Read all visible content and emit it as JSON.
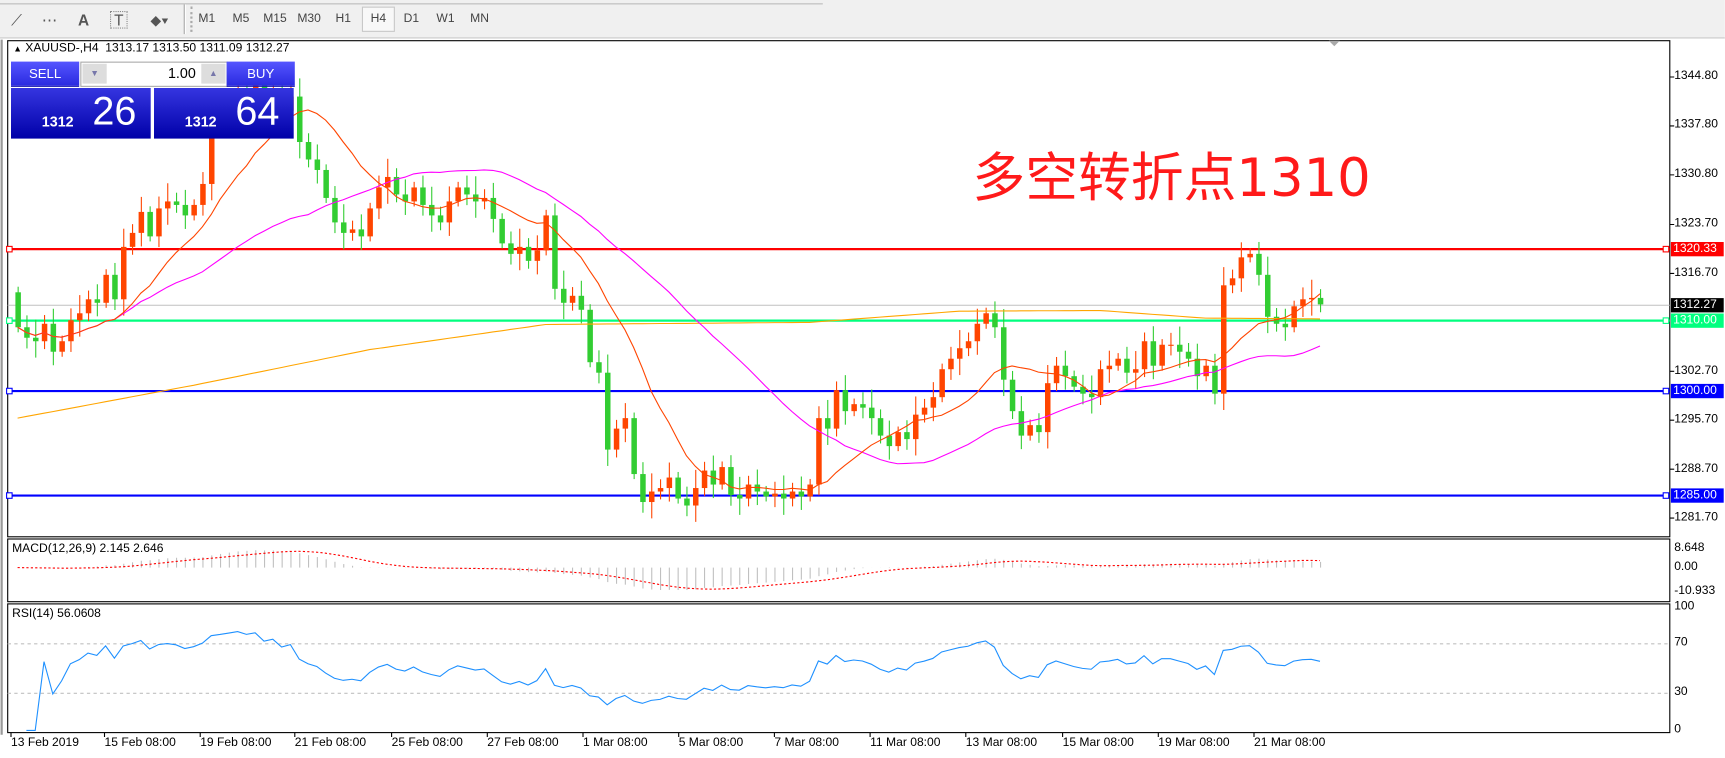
{
  "toolbar": {
    "icons": [
      "elliott-wave-icon",
      "fibonacci-fan-icon",
      "text-icon",
      "text-label-icon",
      "arrows-dropdown-icon"
    ],
    "icon_glyphs": [
      "⟋",
      "⋯",
      "A",
      "T",
      "⬥▾"
    ],
    "timeframes": [
      "M1",
      "M5",
      "M15",
      "M30",
      "H1",
      "H4",
      "D1",
      "W1",
      "MN"
    ],
    "active_timeframe": "H4"
  },
  "header": {
    "symbol": "XAUUSD-,H4",
    "ohlc": "1313.17 1313.50 1311.09 1312.27"
  },
  "trade_panel": {
    "sell_label": "SELL",
    "buy_label": "BUY",
    "lot": "1.00",
    "sell_big": "1312",
    "sell_small": "26",
    "buy_big": "1312",
    "buy_small": "64"
  },
  "annotation": "多空转折点1310",
  "chart_data": {
    "type": "candlestick",
    "symbol": "XAUUSD-",
    "timeframe": "H4",
    "colors": {
      "bull": "#ff4500",
      "bear": "#32cd32",
      "ma_fast": "#ff4500",
      "ma_mid": "#ff00ff",
      "ma_long": "#ffa500"
    },
    "ylim": [
      1278.5,
      1347.5
    ],
    "price_ticks": [
      "1344.80",
      "1337.80",
      "1330.80",
      "1323.70",
      "1316.70",
      "1302.70",
      "1295.70",
      "1288.70",
      "1281.70"
    ],
    "closes": [
      1309.0,
      1307.5,
      1307.0,
      1309.5,
      1305.5,
      1307.0,
      1310.0,
      1311.0,
      1313.0,
      1312.5,
      1316.5,
      1313.0,
      1320.5,
      1322.5,
      1325.5,
      1322.0,
      1326.0,
      1327.0,
      1326.5,
      1325.0,
      1326.5,
      1329.5,
      1337.5,
      1339,
      1341,
      1343,
      1342,
      1344,
      1341,
      1343,
      1340,
      1342,
      1335.5,
      1333.0,
      1331.5,
      1327.5,
      1324,
      1322.5,
      1323,
      1322,
      1326,
      1329,
      1330.5,
      1328,
      1327,
      1329,
      1326.5,
      1325,
      1324,
      1327,
      1329,
      1328,
      1327,
      1327.5,
      1324.5,
      1321,
      1319.5,
      1320.5,
      1318.5,
      1320,
      1325,
      1314.5,
      1312.5,
      1313.5,
      1311.5,
      1304,
      1302.5,
      1291.5,
      1294.5,
      1296,
      1288,
      1284,
      1285.5,
      1286,
      1287.5,
      1284.5,
      1283.5,
      1286,
      1288.5,
      1286.5,
      1289,
      1285,
      1284.5,
      1286.5,
      1285.5,
      1284.8,
      1285.2,
      1284.5,
      1285.5,
      1284.8,
      1286.5,
      1296,
      1294.5,
      1300,
      1297,
      1298,
      1297.5,
      1296,
      1293.5,
      1292,
      1294,
      1293,
      1296.5,
      1297.5,
      1299,
      1303,
      1304.5,
      1306,
      1307,
      1309.5,
      1311,
      1309,
      1301.5,
      1297,
      1293.5,
      1295,
      1294,
      1301,
      1303.5,
      1302,
      1300.5,
      1299.5,
      1299,
      1303,
      1303.5,
      1304.5,
      1302.5,
      1303,
      1307,
      1303.5,
      1306.5,
      1306.5,
      1305.5,
      1304.5,
      1302,
      1303.5,
      1299.5,
      1315,
      1316,
      1319,
      1319.5,
      1316.5,
      1310.5,
      1309.5,
      1309,
      1312,
      1313,
      1313.2,
      1312.27
    ],
    "ma_long_points": [
      [
        0,
        1296.0
      ],
      [
        20,
        1300.7
      ],
      [
        40,
        1305.8
      ],
      [
        60,
        1309.4
      ],
      [
        90,
        1309.7
      ],
      [
        107,
        1311.3
      ],
      [
        123,
        1311.4
      ],
      [
        135,
        1310.3
      ],
      [
        148,
        1310.2
      ]
    ],
    "hlines": [
      {
        "value": "1320.33",
        "color": "#ff0000"
      },
      {
        "value": "1312.27",
        "color": "#000000",
        "line": "#c0c0c0"
      },
      {
        "value": "1310.00",
        "color": "#00ff7f"
      },
      {
        "value": "1300.00",
        "color": "#0000ff"
      },
      {
        "value": "1285.00",
        "color": "#0000ff"
      }
    ],
    "x_labels": [
      "13 Feb 2019",
      "15 Feb 08:00",
      "19 Feb 08:00",
      "21 Feb 08:00",
      "25 Feb 08:00",
      "27 Feb 08:00",
      "1 Mar 08:00",
      "5 Mar 08:00",
      "7 Mar 08:00",
      "11 Mar 08:00",
      "13 Mar 08:00",
      "15 Mar 08:00",
      "19 Mar 08:00",
      "21 Mar 08:00"
    ]
  },
  "macd": {
    "label": "MACD(12,26,9) 2.145 2.646",
    "ticks": [
      "8.648",
      "0.00",
      "-10.933"
    ],
    "max": 8.648,
    "min": -10.933
  },
  "rsi": {
    "label": "RSI(14) 56.0608",
    "ticks": [
      "100",
      "70",
      "30",
      "0"
    ],
    "levels": [
      70,
      30
    ],
    "color": "#1e90ff"
  }
}
